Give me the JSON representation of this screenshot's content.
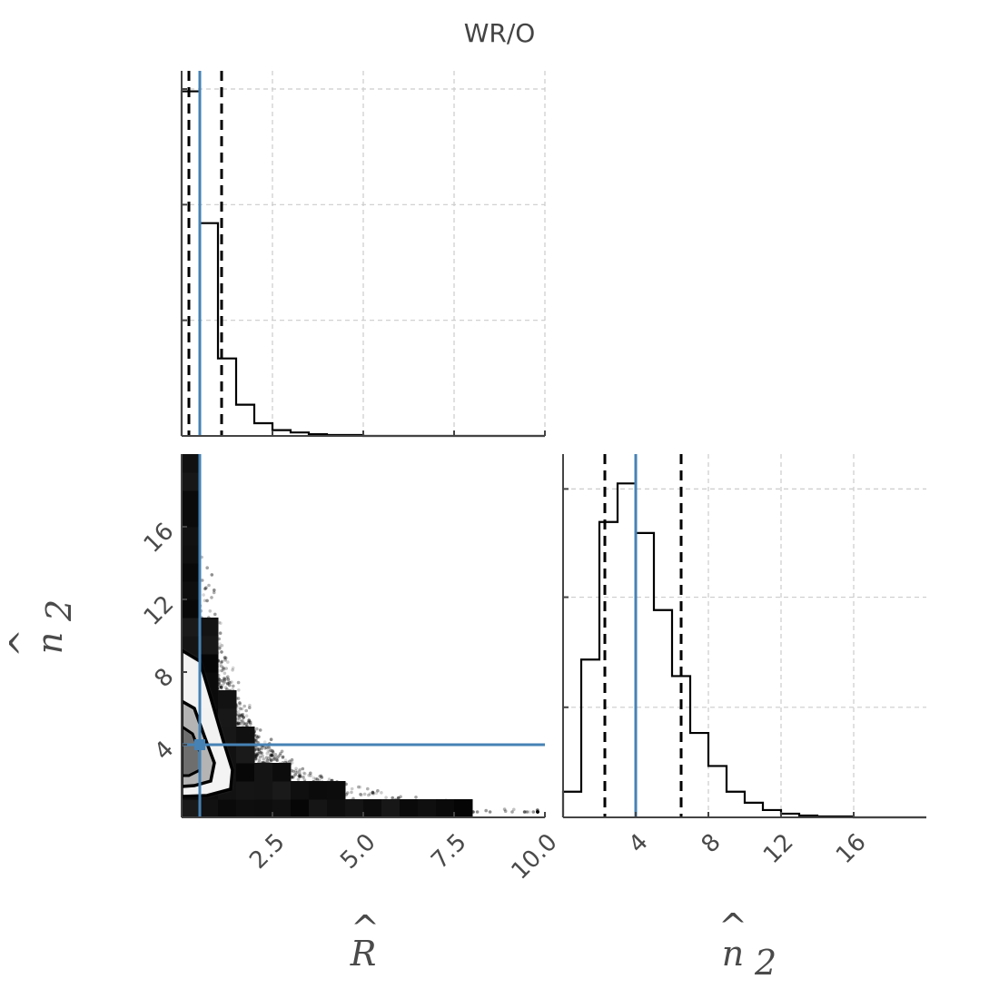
{
  "title": "WR/O",
  "colors": {
    "truth": "#4682b4",
    "hist": "#000000",
    "grid": "#cccccc",
    "axis": "#444444"
  },
  "chart_data": [
    {
      "type": "histogram",
      "variable": "R",
      "xlim": [
        0,
        10
      ],
      "bins": [
        [
          0.0,
          0.5,
          2.98
        ],
        [
          0.5,
          1.0,
          1.84
        ],
        [
          1.0,
          1.5,
          0.67
        ],
        [
          1.5,
          2.0,
          0.27
        ],
        [
          2.0,
          2.5,
          0.11
        ],
        [
          2.5,
          3.0,
          0.05
        ],
        [
          3.0,
          3.5,
          0.03
        ],
        [
          3.5,
          4.0,
          0.015
        ],
        [
          4.0,
          5.0,
          0.008
        ],
        [
          5.0,
          10.0,
          0.0
        ]
      ],
      "ylim": [
        0,
        3.0
      ],
      "quantiles": [
        0.2,
        1.1
      ],
      "truth": 0.5
    },
    {
      "type": "histogram",
      "variable": "n2",
      "xlim": [
        0,
        20
      ],
      "bins": [
        [
          0,
          1,
          0.14
        ],
        [
          1,
          2,
          0.86
        ],
        [
          2,
          3,
          1.61
        ],
        [
          3,
          4,
          1.82
        ],
        [
          4,
          5,
          1.55
        ],
        [
          5,
          6,
          1.13
        ],
        [
          6,
          7,
          0.77
        ],
        [
          7,
          8,
          0.46
        ],
        [
          8,
          9,
          0.28
        ],
        [
          9,
          10,
          0.14
        ],
        [
          10,
          11,
          0.08
        ],
        [
          11,
          12,
          0.04
        ],
        [
          12,
          13,
          0.02
        ],
        [
          13,
          14,
          0.01
        ],
        [
          14,
          16,
          0.005
        ],
        [
          16,
          20,
          0.0
        ]
      ],
      "ylim": [
        0,
        1.98
      ],
      "quantiles": [
        2.3,
        6.5
      ],
      "truth": 4.0
    },
    {
      "type": "scatter-2d-hist",
      "x_variable": "R",
      "y_variable": "n2",
      "xlim": [
        0,
        10
      ],
      "ylim": [
        0,
        20
      ],
      "truth": [
        0.5,
        4.0
      ],
      "xlabel": "R",
      "ylabel": "n2",
      "xticks": [
        "2.5",
        "5.0",
        "7.5",
        "10.0"
      ],
      "yticks": [
        "4",
        "8",
        "12",
        "16"
      ],
      "n2_ticks": [
        "4",
        "8",
        "12",
        "16"
      ],
      "n2_xlabel": "n2"
    }
  ]
}
